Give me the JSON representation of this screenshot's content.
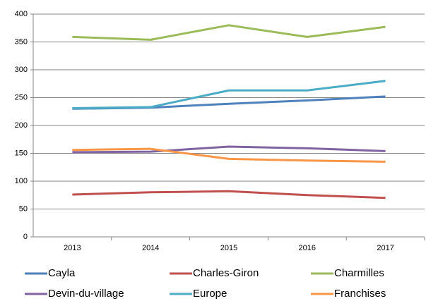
{
  "chart_data": {
    "type": "line",
    "categories": [
      "2013",
      "2014",
      "2015",
      "2016",
      "2017"
    ],
    "series": [
      {
        "name": "Cayla",
        "color": "#4F81BD",
        "values": [
          230,
          232,
          239,
          245,
          252
        ]
      },
      {
        "name": "Charles-Giron",
        "color": "#C0504D",
        "values": [
          76,
          80,
          82,
          75,
          70
        ]
      },
      {
        "name": "Charmilles",
        "color": "#9BBB59",
        "values": [
          359,
          354,
          380,
          359,
          377
        ]
      },
      {
        "name": "Devin-du-village",
        "color": "#8064A2",
        "values": [
          152,
          153,
          162,
          159,
          154
        ]
      },
      {
        "name": "Europe",
        "color": "#4BACC6",
        "values": [
          231,
          233,
          263,
          263,
          280
        ]
      },
      {
        "name": "Franchises",
        "color": "#F79646",
        "values": [
          156,
          158,
          140,
          137,
          135
        ]
      }
    ],
    "ylim": [
      0,
      400
    ],
    "yticks": [
      0,
      50,
      100,
      150,
      200,
      250,
      300,
      350,
      400
    ],
    "grid": true,
    "legend": "bottom"
  }
}
